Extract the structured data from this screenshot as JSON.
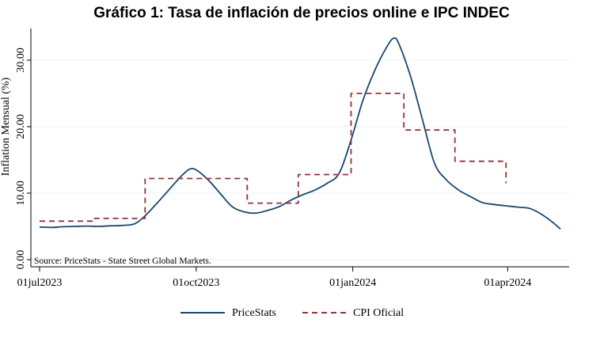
{
  "chart_data": {
    "type": "line",
    "title": "Gráfico 1: Tasa de inflación de precios online e IPC INDEC",
    "ylabel": "Inflation Mensual (%)",
    "xlabel": "",
    "note": "Source: PriceStats - State Street Global Markets.",
    "ylim": [
      0,
      35
    ],
    "yticks": [
      0,
      10,
      20,
      30
    ],
    "ytick_labels": [
      "0.00",
      "10.00",
      "20.00",
      "30.00"
    ],
    "xlim": [
      "2023-07-01",
      "2024-05-02"
    ],
    "xticks": [
      "2023-07-01",
      "2023-10-01",
      "2024-01-01",
      "2024-04-01"
    ],
    "xtick_labels": [
      "01jul2023",
      "01oct2023",
      "01jan2024",
      "01apr2024"
    ],
    "grid": true,
    "legend_position": "bottom",
    "colors": {
      "PriceStats": "#1a476f",
      "CPI Oficial": "#90353b",
      "grid": "#eaf2f3"
    },
    "series": [
      {
        "name": "PriceStats",
        "style": "solid",
        "points": [
          [
            "2023-07-01",
            4.9
          ],
          [
            "2023-07-08",
            4.85
          ],
          [
            "2023-07-15",
            4.95
          ],
          [
            "2023-07-22",
            5.0
          ],
          [
            "2023-07-29",
            5.05
          ],
          [
            "2023-08-05",
            5.0
          ],
          [
            "2023-08-12",
            5.1
          ],
          [
            "2023-08-19",
            5.15
          ],
          [
            "2023-08-26",
            5.4
          ],
          [
            "2023-09-01",
            6.6
          ],
          [
            "2023-09-08",
            8.5
          ],
          [
            "2023-09-15",
            10.5
          ],
          [
            "2023-09-22",
            12.5
          ],
          [
            "2023-09-27",
            13.6
          ],
          [
            "2023-10-01",
            13.5
          ],
          [
            "2023-10-08",
            12.0
          ],
          [
            "2023-10-15",
            10.0
          ],
          [
            "2023-10-22",
            8.0
          ],
          [
            "2023-10-29",
            7.2
          ],
          [
            "2023-11-05",
            7.0
          ],
          [
            "2023-11-12",
            7.4
          ],
          [
            "2023-11-19",
            8.0
          ],
          [
            "2023-11-26",
            9.0
          ],
          [
            "2023-12-03",
            9.8
          ],
          [
            "2023-12-10",
            10.5
          ],
          [
            "2023-12-17",
            11.5
          ],
          [
            "2023-12-24",
            13.0
          ],
          [
            "2023-12-31",
            18.0
          ],
          [
            "2024-01-07",
            24.0
          ],
          [
            "2024-01-14",
            28.5
          ],
          [
            "2024-01-21",
            32.0
          ],
          [
            "2024-01-25",
            33.3
          ],
          [
            "2024-01-28",
            32.5
          ],
          [
            "2024-02-04",
            27.5
          ],
          [
            "2024-02-11",
            21.0
          ],
          [
            "2024-02-18",
            14.5
          ],
          [
            "2024-02-25",
            12.0
          ],
          [
            "2024-03-03",
            10.5
          ],
          [
            "2024-03-10",
            9.5
          ],
          [
            "2024-03-17",
            8.6
          ],
          [
            "2024-03-24",
            8.3
          ],
          [
            "2024-03-31",
            8.1
          ],
          [
            "2024-04-07",
            7.9
          ],
          [
            "2024-04-14",
            7.7
          ],
          [
            "2024-04-21",
            6.8
          ],
          [
            "2024-04-28",
            5.5
          ],
          [
            "2024-05-02",
            4.6
          ]
        ]
      },
      {
        "name": "CPI Oficial",
        "style": "dashed",
        "points": [
          [
            "2023-07-01",
            5.8
          ],
          [
            "2023-08-01",
            5.8
          ],
          [
            "2023-08-01",
            6.2
          ],
          [
            "2023-09-01",
            6.2
          ],
          [
            "2023-09-01",
            12.2
          ],
          [
            "2023-10-31",
            12.2
          ],
          [
            "2023-10-31",
            8.5
          ],
          [
            "2023-11-30",
            8.5
          ],
          [
            "2023-11-30",
            12.8
          ],
          [
            "2023-12-31",
            12.8
          ],
          [
            "2023-12-31",
            25.0
          ],
          [
            "2024-01-31",
            25.0
          ],
          [
            "2024-01-31",
            19.5
          ],
          [
            "2024-03-01",
            19.5
          ],
          [
            "2024-03-01",
            14.8
          ],
          [
            "2024-03-31",
            14.8
          ],
          [
            "2024-03-31",
            11.5
          ]
        ]
      }
    ]
  }
}
